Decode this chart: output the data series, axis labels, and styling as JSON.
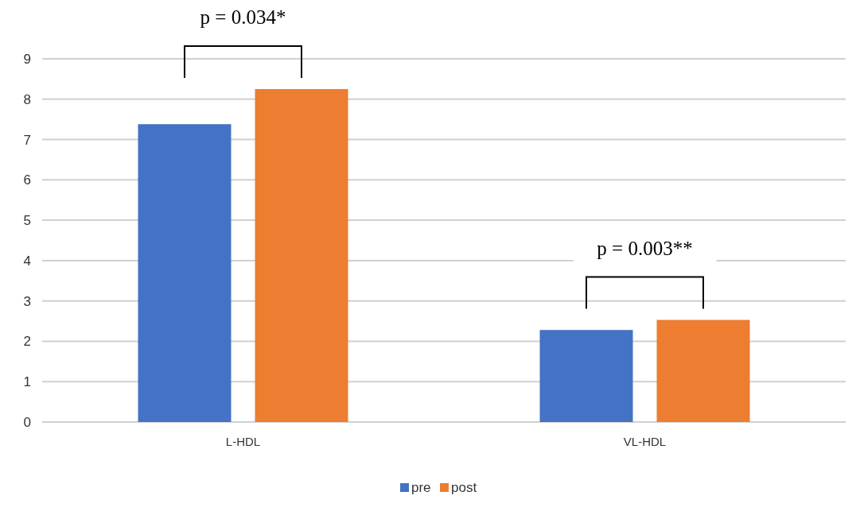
{
  "chart_data": {
    "type": "bar",
    "categories": [
      "L-HDL",
      "VL-HDL"
    ],
    "series": [
      {
        "name": "pre",
        "color": "#4472c4",
        "values": [
          7.38,
          2.28
        ]
      },
      {
        "name": "post",
        "color": "#ed7d31",
        "values": [
          8.25,
          2.53
        ]
      }
    ],
    "ylim": [
      0,
      9
    ],
    "yticks": [
      0,
      1,
      2,
      3,
      4,
      5,
      6,
      7,
      8,
      9
    ],
    "grid": "y",
    "legend": "bottom",
    "annotations": [
      "p = 0.034*",
      "p = 0.003**"
    ]
  }
}
